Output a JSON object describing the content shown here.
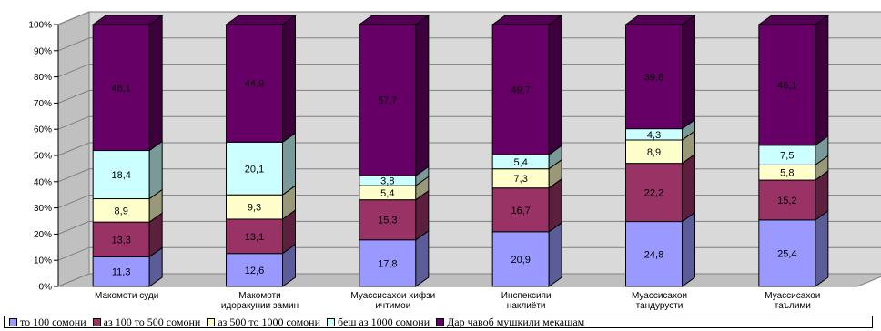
{
  "chart_data": {
    "type": "bar",
    "stacked": true,
    "percent_stacked": true,
    "categories": [
      [
        "Макомоти суди"
      ],
      [
        "Макомоти",
        "идоракунии замин"
      ],
      [
        "Муассисахои хифзи",
        "ичтимои"
      ],
      [
        "Инспексияи",
        "наклиёти"
      ],
      [
        "Муассисахои",
        "тандурусти"
      ],
      [
        "Муассисахои",
        "таълими"
      ]
    ],
    "series": [
      {
        "name": "то 100 сомони",
        "color": "#9999ff",
        "values": [
          11.3,
          12.6,
          17.8,
          20.9,
          24.8,
          25.4
        ]
      },
      {
        "name": "аз 100 то 500 сомони",
        "color": "#993366",
        "values": [
          13.3,
          13.1,
          15.3,
          16.7,
          22.2,
          15.2
        ]
      },
      {
        "name": "аз 500 то 1000 сомони",
        "color": "#ffffcc",
        "values": [
          8.9,
          9.3,
          5.4,
          7.3,
          8.9,
          5.8
        ]
      },
      {
        "name": "беш аз 1000 сомони",
        "color": "#ccffff",
        "values": [
          18.4,
          20.1,
          3.8,
          5.4,
          4.3,
          7.5
        ]
      },
      {
        "name": "Дар чавоб мушкили мекашам",
        "color": "#660066",
        "values": [
          48.1,
          44.9,
          57.7,
          49.7,
          39.8,
          46.1
        ]
      }
    ],
    "data_labels": [
      [
        "11,3",
        "12,6",
        "17,8",
        "20,9",
        "24,8",
        "25,4"
      ],
      [
        "13,3",
        "13,1",
        "15,3",
        "16,7",
        "22,2",
        "15,2"
      ],
      [
        "8,9",
        "9,3",
        "5,4",
        "7,3",
        "8,9",
        "5,8"
      ],
      [
        "18,4",
        "20,1",
        "3,8",
        "5,4",
        "4,3",
        "7,5"
      ],
      [
        "48,1",
        "44,9",
        "57,7",
        "49,7",
        "39,8",
        "46,1"
      ]
    ],
    "y_ticks": [
      "0%",
      "10%",
      "20%",
      "30%",
      "40%",
      "50%",
      "60%",
      "70%",
      "80%",
      "90%",
      "100%"
    ],
    "ylim": [
      0,
      100
    ],
    "grid": true,
    "legend_position": "bottom",
    "style": "3d-column"
  }
}
